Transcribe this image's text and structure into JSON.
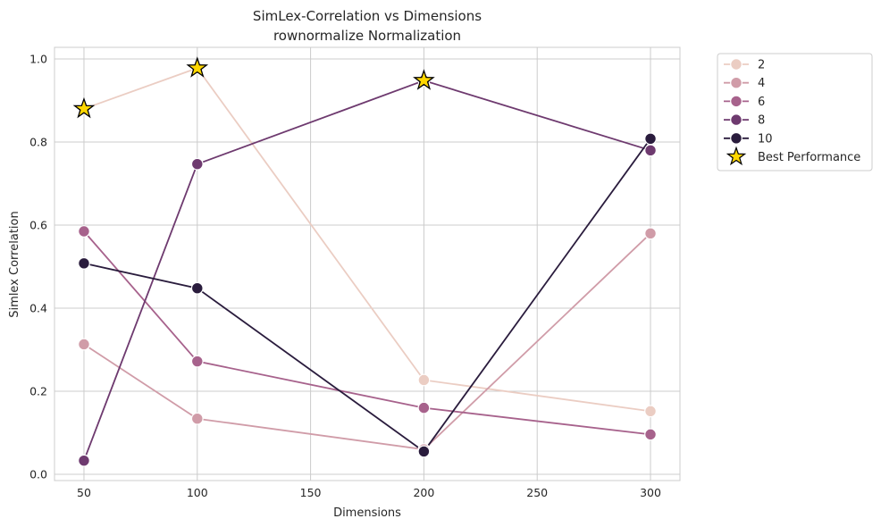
{
  "chart_data": {
    "type": "line",
    "title_line1": "SimLex-Correlation vs Dimensions",
    "title_line2": "rownormalize Normalization",
    "xlabel": "Dimensions",
    "ylabel": "Simlex Correlation",
    "xlim": [
      37,
      313
    ],
    "ylim": [
      -0.015,
      1.028
    ],
    "xticks": [
      "50",
      "100",
      "150",
      "200",
      "250",
      "300"
    ],
    "xtick_values": [
      50,
      100,
      150,
      200,
      250,
      300
    ],
    "yticks": [
      "0.0",
      "0.2",
      "0.4",
      "0.6",
      "0.8",
      "1.0"
    ],
    "ytick_values": [
      0.0,
      0.2,
      0.4,
      0.6,
      0.8,
      1.0
    ],
    "grid": true,
    "legend_position": "outside-top-right",
    "x": [
      50,
      100,
      200,
      300
    ],
    "series": [
      {
        "name": "2",
        "color": "#ebcdc3",
        "values": [
          0.88,
          0.978,
          0.227,
          0.152
        ]
      },
      {
        "name": "4",
        "color": "#d09ca8",
        "values": [
          0.313,
          0.134,
          0.06,
          0.58
        ]
      },
      {
        "name": "6",
        "color": "#a7628c",
        "values": [
          0.585,
          0.272,
          0.16,
          0.096
        ]
      },
      {
        "name": "8",
        "color": "#6e3a6f",
        "values": [
          0.033,
          0.747,
          0.948,
          0.78
        ]
      },
      {
        "name": "10",
        "color": "#2a1c3d",
        "values": [
          0.508,
          0.448,
          0.055,
          0.808
        ]
      }
    ],
    "best_points": {
      "label": "Best Performance",
      "color": "#ffd700",
      "points": [
        {
          "x": 50,
          "y": 0.88
        },
        {
          "x": 100,
          "y": 0.978
        },
        {
          "x": 200,
          "y": 0.948
        }
      ]
    }
  }
}
